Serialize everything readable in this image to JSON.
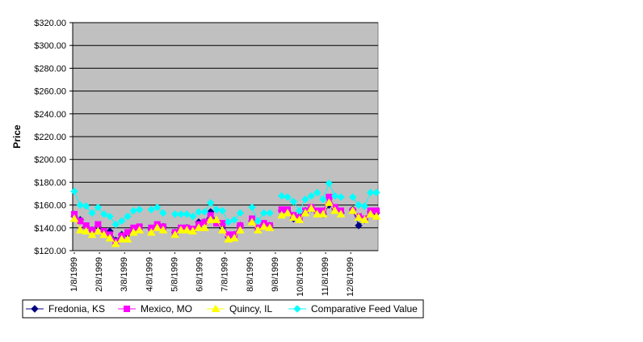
{
  "chart_data": {
    "type": "line",
    "title": "",
    "xlabel": "",
    "ylabel": "Price",
    "ylim": [
      120,
      320
    ],
    "yticks": [
      "$120.00",
      "$140.00",
      "$160.00",
      "$180.00",
      "$200.00",
      "$220.00",
      "$240.00",
      "$260.00",
      "$280.00",
      "$300.00",
      "$320.00"
    ],
    "xtick_labels": [
      "1/8/1999",
      "2/8/1999",
      "3/8/1999",
      "4/8/1999",
      "5/8/1999",
      "6/8/1999",
      "7/8/1999",
      "8/8/1999",
      "9/8/1999",
      "10/8/1999",
      "11/8/1999",
      "12/8/1999"
    ],
    "grid": "horizontal",
    "plot_background": "#c0c0c0",
    "legend_position": "bottom",
    "series": [
      {
        "name": "Fredonia, KS",
        "color": "#000080",
        "marker": "diamond",
        "values": [
          150,
          147,
          141,
          138,
          141,
          136,
          137,
          129,
          134,
          134,
          139,
          140,
          null,
          139,
          142,
          141,
          null,
          136,
          139,
          140,
          138,
          145,
          145,
          154,
          145,
          140,
          132,
          134,
          142,
          null,
          146,
          140,
          143,
          142,
          null,
          155,
          154,
          148,
          150,
          155,
          157,
          154,
          152,
          160,
          157,
          153,
          null,
          156,
          142,
          147,
          154,
          153
        ]
      },
      {
        "name": "Mexico, MO",
        "color": "#ff00ff",
        "marker": "square",
        "values": [
          152,
          146,
          142,
          138,
          143,
          137,
          134,
          128,
          133,
          136,
          140,
          141,
          null,
          140,
          143,
          141,
          null,
          136,
          140,
          140,
          139,
          143,
          145,
          151,
          144,
          144,
          134,
          134,
          142,
          null,
          148,
          140,
          144,
          142,
          null,
          156,
          156,
          151,
          149,
          155,
          158,
          155,
          155,
          167,
          158,
          155,
          null,
          155,
          150,
          148,
          155,
          155
        ]
      },
      {
        "name": "Quincy, IL",
        "color": "#ffff00",
        "marker": "triangle",
        "values": [
          148,
          138,
          137,
          134,
          137,
          134,
          131,
          126,
          130,
          130,
          136,
          138,
          null,
          136,
          140,
          138,
          null,
          134,
          138,
          138,
          137,
          140,
          140,
          147,
          147,
          138,
          130,
          131,
          138,
          null,
          145,
          138,
          141,
          140,
          null,
          151,
          153,
          149,
          147,
          153,
          157,
          152,
          152,
          162,
          155,
          152,
          null,
          155,
          149,
          147,
          152,
          150
        ]
      },
      {
        "name": "Comparative Feed Value",
        "color": "#00ffff",
        "marker": "diamond",
        "values": [
          172,
          160,
          159,
          153,
          158,
          152,
          150,
          143,
          146,
          150,
          155,
          156,
          null,
          156,
          158,
          153,
          null,
          152,
          152,
          152,
          150,
          154,
          154,
          162,
          156,
          155,
          145,
          147,
          153,
          null,
          158,
          146,
          153,
          153,
          null,
          168,
          167,
          163,
          155,
          165,
          168,
          171,
          165,
          179,
          168,
          167,
          null,
          167,
          160,
          159,
          171,
          171
        ]
      }
    ]
  }
}
